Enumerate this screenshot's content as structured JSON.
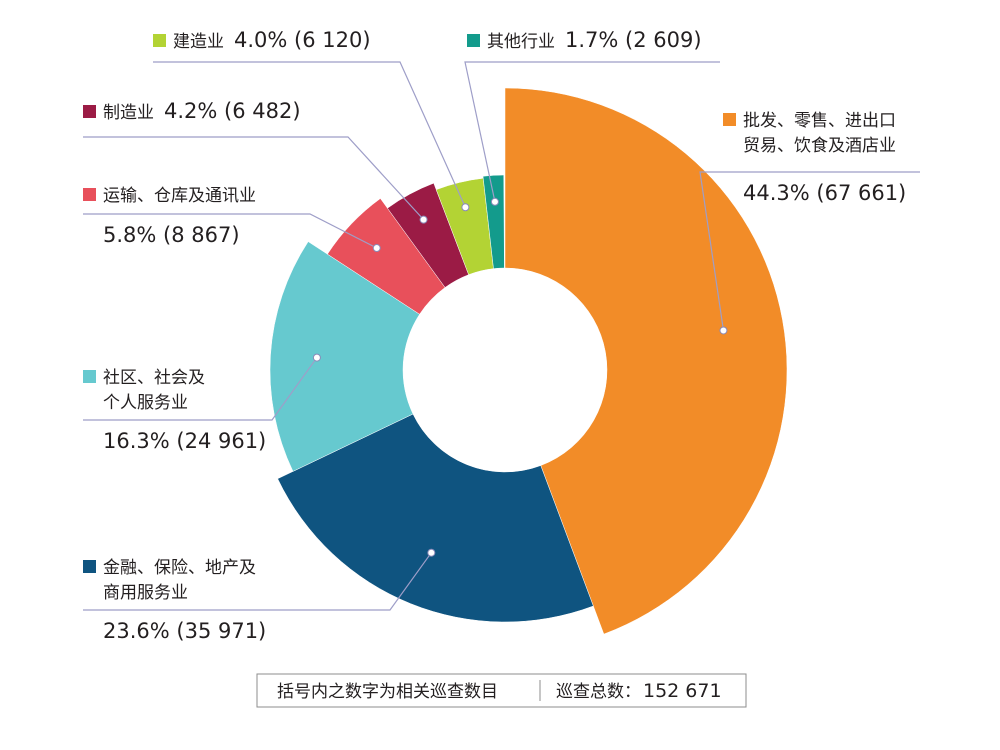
{
  "chart_data": {
    "type": "pie",
    "title": "",
    "total_label": "巡查总数：",
    "total_value": "152 671",
    "note": "括号内之数字为相关巡查数目",
    "slices": [
      {
        "name": "批发、零售、进出口贸易、饮食及酒店业",
        "name_lines": [
          "批发、零售、进出口",
          "贸易、饮食及酒店业"
        ],
        "percent": 44.3,
        "percent_label": "44.3%",
        "count": 67661,
        "count_label": "(67 661)",
        "color": "#f28c28"
      },
      {
        "name": "金融、保险、地产及商用服务业",
        "name_lines": [
          "金融、保险、地产及",
          "商用服务业"
        ],
        "percent": 23.6,
        "percent_label": "23.6%",
        "count": 35971,
        "count_label": "(35 971)",
        "color": "#0f5480"
      },
      {
        "name": "社区、社会及个人服务业",
        "name_lines": [
          "社区、社会及",
          "个人服务业"
        ],
        "percent": 16.3,
        "percent_label": "16.3%",
        "count": 24961,
        "count_label": "(24 961)",
        "color": "#66c9cf"
      },
      {
        "name": "运输、仓库及通讯业",
        "name_lines": [
          "运输、仓库及通讯业"
        ],
        "percent": 5.8,
        "percent_label": "5.8%",
        "count": 8867,
        "count_label": "(8 867)",
        "color": "#e8505b"
      },
      {
        "name": "制造业",
        "name_lines": [
          "制造业"
        ],
        "percent": 4.2,
        "percent_label": "4.2%",
        "count": 6482,
        "count_label": "(6 482)",
        "color": "#9b1b45"
      },
      {
        "name": "建造业",
        "name_lines": [
          "建造业"
        ],
        "percent": 4.0,
        "percent_label": "4.0%",
        "count": 6120,
        "count_label": "(6 120)",
        "color": "#b3d334"
      },
      {
        "name": "其他行业",
        "name_lines": [
          "其他行业"
        ],
        "percent": 1.7,
        "percent_label": "1.7%",
        "count": 2609,
        "count_label": "(2 609)",
        "color": "#139b8c"
      }
    ]
  }
}
